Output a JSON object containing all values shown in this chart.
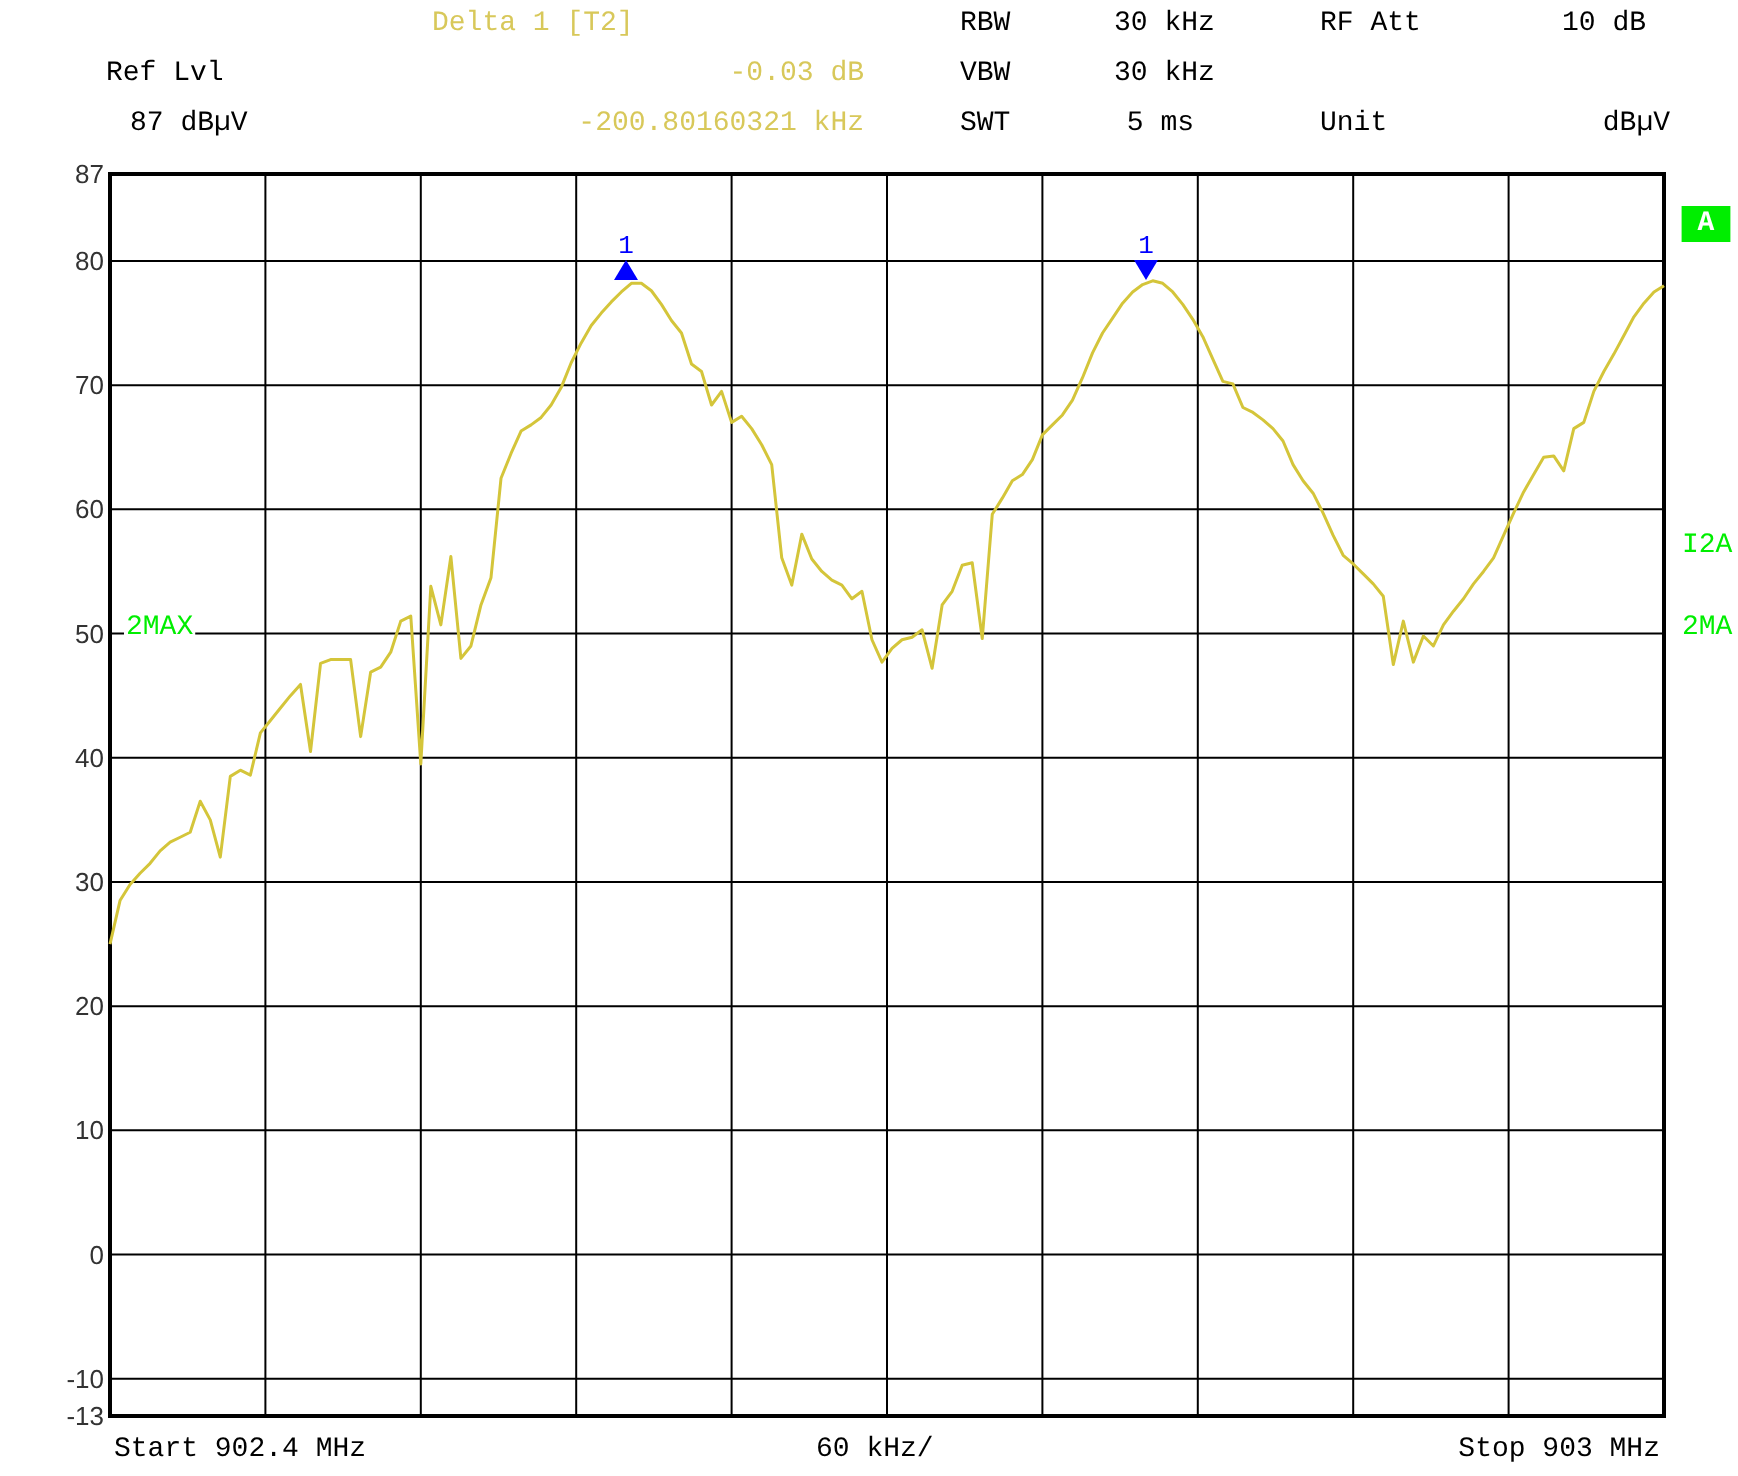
{
  "chart_data": {
    "type": "line",
    "categories": [
      null,
      null,
      null,
      null,
      null,
      null,
      null,
      null,
      null,
      null,
      null,
      null,
      null,
      null,
      null,
      null,
      null,
      null,
      null,
      null,
      null,
      null,
      null,
      null,
      null,
      null,
      null,
      null,
      null,
      null,
      null,
      null,
      null,
      null,
      null,
      null,
      null,
      null,
      null,
      null,
      null,
      null,
      null,
      null,
      null,
      null,
      null,
      null,
      null,
      null,
      null,
      null,
      null,
      null,
      null,
      null,
      null,
      null,
      null,
      null,
      null,
      null,
      null,
      null,
      null,
      null,
      null,
      null,
      null,
      null,
      null,
      null,
      null,
      null,
      null,
      null,
      null,
      null,
      null,
      null,
      null,
      null,
      null,
      null,
      null,
      null,
      null,
      null,
      null,
      null,
      null,
      null,
      null,
      null,
      null,
      null,
      null,
      null,
      null,
      null,
      null,
      null,
      null,
      null,
      null,
      null,
      null,
      null,
      null,
      null,
      null,
      null,
      null,
      null,
      null,
      null,
      null,
      null,
      null,
      null,
      null,
      null,
      null,
      null,
      null,
      null,
      null,
      null,
      null,
      null,
      null,
      null,
      null,
      null,
      null,
      null,
      null,
      null,
      null,
      null,
      null,
      null,
      null,
      null,
      null,
      null,
      null,
      null,
      null,
      null,
      null,
      null,
      null,
      null,
      null,
      null
    ],
    "ylim": [
      -13,
      87
    ],
    "yticks": [
      -13,
      -10,
      0,
      10,
      20,
      30,
      40,
      50,
      60,
      70,
      80,
      87
    ],
    "grid": true,
    "tick_labels": "y",
    "marker": "none",
    "line_style": "solid",
    "series": [
      {
        "color": "#d4c53a",
        "values": [
          25,
          28.5,
          29.8,
          30.7,
          31.5,
          32.5,
          33.2,
          33.6,
          34,
          36.5,
          35,
          32,
          38.5,
          39,
          38.6,
          42,
          43,
          44,
          45,
          45.9,
          40.5,
          47.6,
          47.9,
          47.9,
          47.9,
          41.7,
          46.9,
          47.3,
          48.5,
          51,
          51.4,
          39.5,
          53.8,
          50.7,
          56.2,
          48,
          49,
          52.3,
          54.5,
          62.5,
          64.5,
          66.3,
          66.8,
          67.4,
          68.4,
          69.8,
          71.8,
          73.4,
          74.8,
          75.8,
          76.7,
          77.5,
          78.2,
          78.2,
          77.6,
          76.5,
          75.2,
          74.2,
          71.7,
          71.1,
          68.4,
          69.5,
          67,
          67.5,
          66.5,
          65.2,
          63.6,
          56.1,
          53.9,
          58,
          56,
          55,
          54.3,
          53.9,
          52.8,
          53.4,
          49.5,
          47.7,
          48.8,
          49.5,
          49.7,
          50.3,
          47.2,
          52.3,
          53.4,
          55.5,
          55.7,
          49.6,
          59.6,
          60.9,
          62.3,
          62.8,
          64,
          66,
          66.8,
          67.6,
          68.8,
          70.6,
          72.6,
          74.2,
          75.4,
          76.6,
          77.5,
          78.1,
          78.4,
          78.2,
          77.5,
          76.5,
          75.3,
          73.9,
          72.1,
          70.3,
          70.1,
          68.2,
          67.8,
          67.2,
          66.5,
          65.5,
          63.6,
          62.3,
          61.3,
          59.7,
          57.9,
          56.3,
          55.6,
          54.8,
          54,
          53,
          47.5,
          51,
          47.7,
          49.8,
          49,
          50.7,
          51.8,
          52.8,
          54,
          55,
          56.1,
          57.9,
          59.7,
          61.4,
          62.8,
          64.2,
          64.3,
          63.1,
          66.5,
          67,
          69.5,
          71.1,
          72.5,
          74,
          75.5,
          76.6,
          77.5,
          78
        ]
      }
    ],
    "annotations": [
      "Delta 1 [T2]",
      "RBW",
      "30 kHz",
      "RF Att",
      "10 dB",
      "Ref Lvl",
      "-0.03 dB",
      "VBW",
      "30 kHz",
      "87 dBµV",
      "-200.80160321 kHz",
      "SWT",
      "5 ms",
      "Unit",
      "dBµV",
      "A",
      "I2A",
      "2MA",
      "2MAX",
      "Start 902.4 MHz",
      "60 kHz/",
      "Stop 903 MHz",
      "1",
      "1"
    ]
  }
}
